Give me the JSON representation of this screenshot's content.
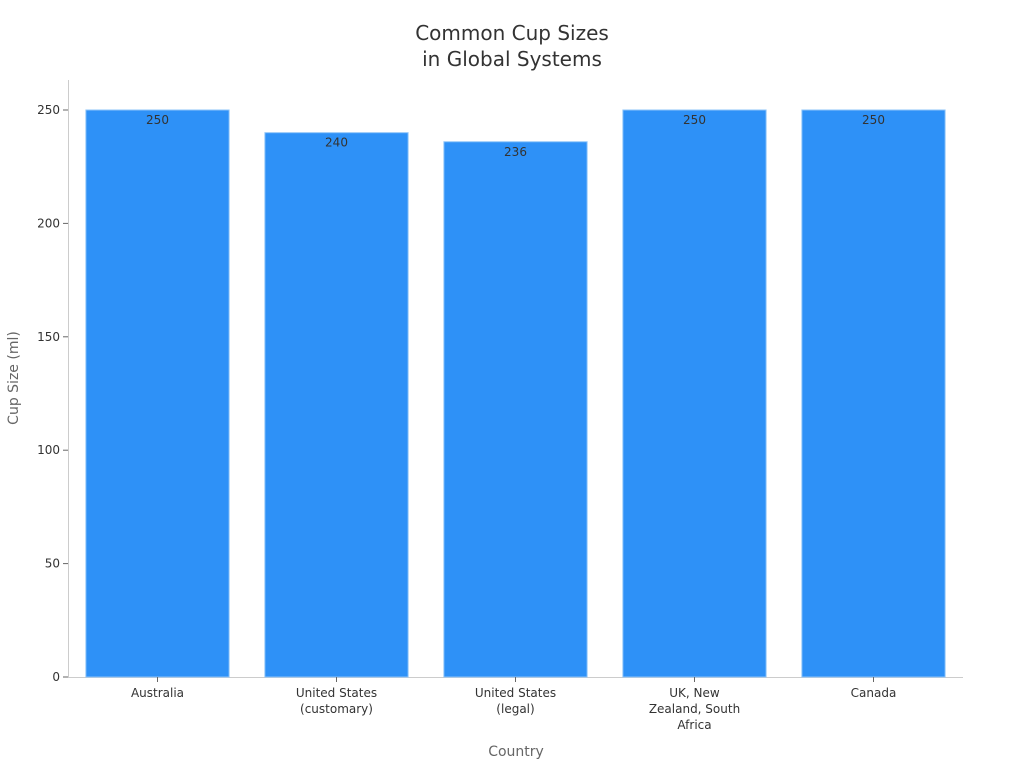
{
  "chart_data": {
    "type": "bar",
    "title": [
      "Common Cup Sizes",
      "in Global Systems"
    ],
    "xlabel": "Country",
    "ylabel": "Cup Size (ml)",
    "categories": [
      [
        "Australia"
      ],
      [
        "United States",
        "(customary)"
      ],
      [
        "United States",
        "(legal)"
      ],
      [
        "UK, New",
        "Zealand, South",
        "Africa"
      ],
      [
        "Canada"
      ]
    ],
    "values": [
      250,
      240,
      236,
      250,
      250
    ],
    "data_labels": [
      "250",
      "240",
      "236",
      "250",
      "250"
    ],
    "yticks": [
      0,
      50,
      100,
      150,
      200,
      250
    ],
    "ylim": [
      0,
      263
    ],
    "grid": false,
    "bar_color": "#2e91f7",
    "bar_edge_color": "#8ec4f8"
  }
}
